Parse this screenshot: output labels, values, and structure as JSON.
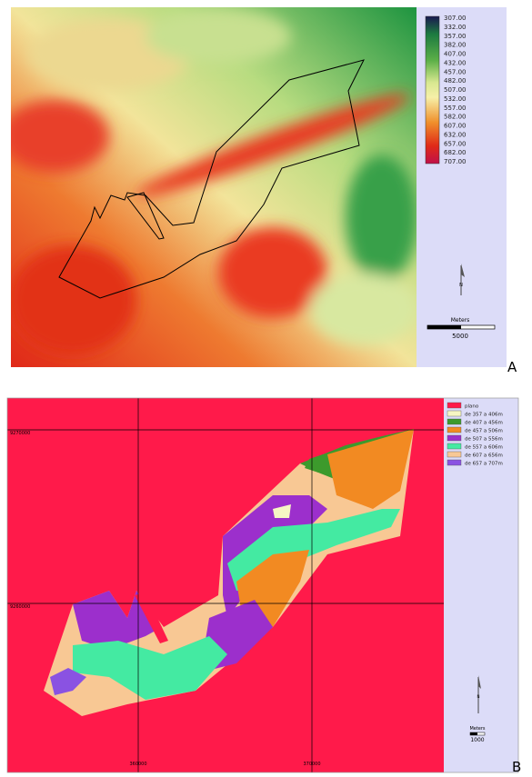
{
  "panel_a": {
    "label": "A",
    "legend": [
      "307.00",
      "332.00",
      "357.00",
      "382.00",
      "407.00",
      "432.00",
      "457.00",
      "482.00",
      "507.00",
      "532.00",
      "557.00",
      "582.00",
      "607.00",
      "632.00",
      "657.00",
      "682.00",
      "707.00"
    ],
    "north": "N",
    "scale": {
      "unit": "Meters",
      "distance": "5000"
    }
  },
  "panel_b": {
    "label": "B",
    "legend": [
      {
        "name": "plano",
        "color": "#ff1a4a"
      },
      {
        "name": "de 357 a 406m",
        "color": "#f6f6c4"
      },
      {
        "name": "de 407 a 456m",
        "color": "#3c9a2c"
      },
      {
        "name": "de 457 a 506m",
        "color": "#f28a22"
      },
      {
        "name": "de 507 a 556m",
        "color": "#9c2fcc"
      },
      {
        "name": "de 557 a 606m",
        "color": "#44eaa2"
      },
      {
        "name": "de 607 a 656m",
        "color": "#f8c894"
      },
      {
        "name": "de 657 a 707m",
        "color": "#8a52e2"
      }
    ],
    "grid_labels": {
      "y": [
        "9270000",
        "9260000"
      ],
      "x": [
        "360000",
        "370000"
      ]
    },
    "north": "N",
    "scale": {
      "unit": "Meters",
      "distance": "1000"
    }
  }
}
